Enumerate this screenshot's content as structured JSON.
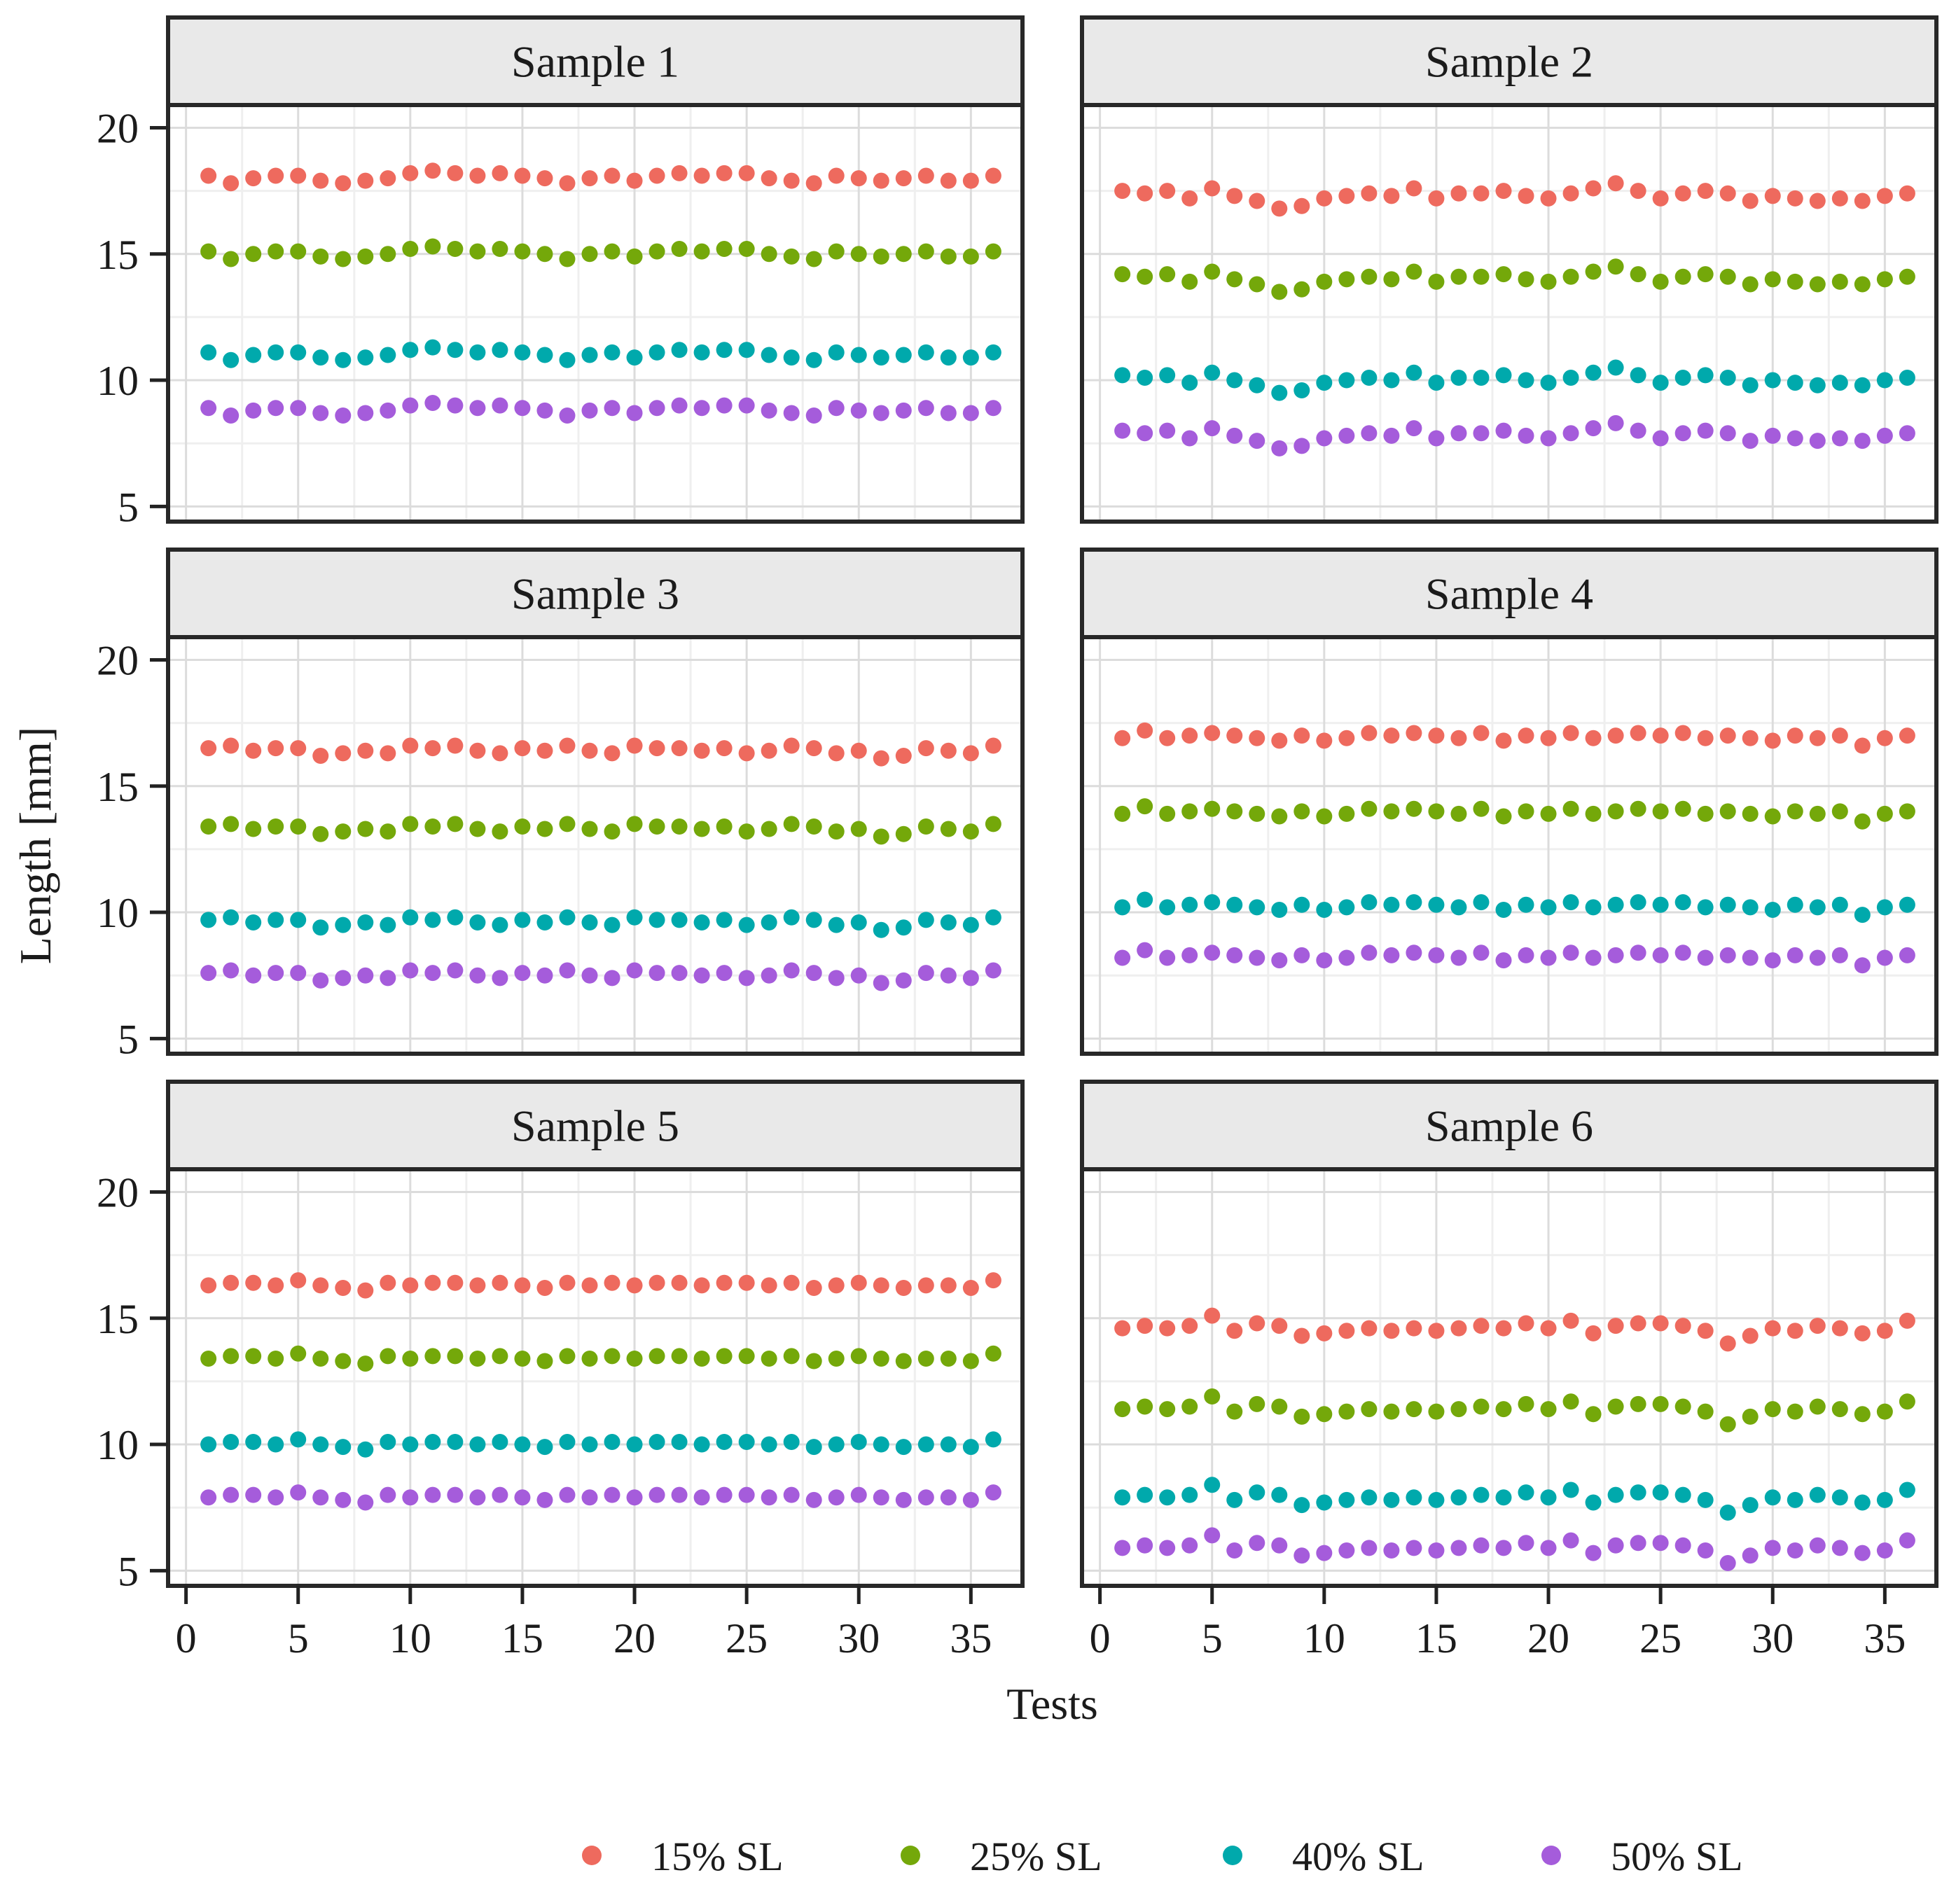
{
  "axes": {
    "x_label": "Tests",
    "y_label": "Length [mm]",
    "x_ticks": [
      0,
      5,
      10,
      15,
      20,
      25,
      30,
      35
    ],
    "y_ticks": [
      20,
      15,
      10,
      5
    ],
    "x_range": [
      -0.8,
      37.3
    ],
    "y_range": [
      4.4,
      20.9
    ]
  },
  "legend": {
    "items": [
      {
        "label": "15% SL",
        "color": "#EE6A5E",
        "marker": "dot-icon"
      },
      {
        "label": "25% SL",
        "color": "#74A80A",
        "marker": "dot-icon"
      },
      {
        "label": "40% SL",
        "color": "#00A9AC",
        "marker": "dot-icon"
      },
      {
        "label": "50% SL",
        "color": "#A55CDB",
        "marker": "dot-icon"
      }
    ]
  },
  "style": {
    "panel_header_fill": "#E9E9E9",
    "panel_border": "#282828",
    "grid_major": "#DCDCDC",
    "grid_minor": "#EFEFEF",
    "plot_background": "#FFFFFF"
  },
  "x_values": [
    1,
    2,
    3,
    4,
    5,
    6,
    7,
    8,
    9,
    10,
    11,
    12,
    13,
    14,
    15,
    16,
    17,
    18,
    19,
    20,
    21,
    22,
    23,
    24,
    25,
    26,
    27,
    28,
    29,
    30,
    31,
    32,
    33,
    34,
    35,
    36
  ],
  "chart_data": [
    {
      "type": "scatter",
      "title": "Sample 1",
      "xlabel": "Tests",
      "ylabel": "Length [mm]",
      "xlim": [
        -0.8,
        37.3
      ],
      "ylim": [
        4.4,
        20.9
      ],
      "series": [
        {
          "name": "15% SL",
          "values": [
            18.1,
            17.8,
            18.0,
            18.1,
            18.1,
            17.9,
            17.8,
            17.9,
            18.0,
            18.2,
            18.3,
            18.2,
            18.1,
            18.2,
            18.1,
            18.0,
            17.8,
            18.0,
            18.1,
            17.9,
            18.1,
            18.2,
            18.1,
            18.2,
            18.2,
            18.0,
            17.9,
            17.8,
            18.1,
            18.0,
            17.9,
            18.0,
            18.1,
            17.9,
            17.9,
            18.1
          ]
        },
        {
          "name": "25% SL",
          "values": [
            15.1,
            14.8,
            15.0,
            15.1,
            15.1,
            14.9,
            14.8,
            14.9,
            15.0,
            15.2,
            15.3,
            15.2,
            15.1,
            15.2,
            15.1,
            15.0,
            14.8,
            15.0,
            15.1,
            14.9,
            15.1,
            15.2,
            15.1,
            15.2,
            15.2,
            15.0,
            14.9,
            14.8,
            15.1,
            15.0,
            14.9,
            15.0,
            15.1,
            14.9,
            14.9,
            15.1
          ]
        },
        {
          "name": "40% SL",
          "values": [
            11.1,
            10.8,
            11.0,
            11.1,
            11.1,
            10.9,
            10.8,
            10.9,
            11.0,
            11.2,
            11.3,
            11.2,
            11.1,
            11.2,
            11.1,
            11.0,
            10.8,
            11.0,
            11.1,
            10.9,
            11.1,
            11.2,
            11.1,
            11.2,
            11.2,
            11.0,
            10.9,
            10.8,
            11.1,
            11.0,
            10.9,
            11.0,
            11.1,
            10.9,
            10.9,
            11.1
          ]
        },
        {
          "name": "50% SL",
          "values": [
            8.9,
            8.6,
            8.8,
            8.9,
            8.9,
            8.7,
            8.6,
            8.7,
            8.8,
            9.0,
            9.1,
            9.0,
            8.9,
            9.0,
            8.9,
            8.8,
            8.6,
            8.8,
            8.9,
            8.7,
            8.9,
            9.0,
            8.9,
            9.0,
            9.0,
            8.8,
            8.7,
            8.6,
            8.9,
            8.8,
            8.7,
            8.8,
            8.9,
            8.7,
            8.7,
            8.9
          ]
        }
      ]
    },
    {
      "type": "scatter",
      "title": "Sample 2",
      "xlabel": "Tests",
      "ylabel": "Length [mm]",
      "xlim": [
        -0.8,
        37.3
      ],
      "ylim": [
        4.4,
        20.9
      ],
      "series": [
        {
          "name": "15% SL",
          "values": [
            17.5,
            17.4,
            17.5,
            17.2,
            17.6,
            17.3,
            17.1,
            16.8,
            16.9,
            17.2,
            17.3,
            17.4,
            17.3,
            17.6,
            17.2,
            17.4,
            17.4,
            17.5,
            17.3,
            17.2,
            17.4,
            17.6,
            17.8,
            17.5,
            17.2,
            17.4,
            17.5,
            17.4,
            17.1,
            17.3,
            17.2,
            17.1,
            17.2,
            17.1,
            17.3,
            17.4
          ]
        },
        {
          "name": "25% SL",
          "values": [
            14.2,
            14.1,
            14.2,
            13.9,
            14.3,
            14.0,
            13.8,
            13.5,
            13.6,
            13.9,
            14.0,
            14.1,
            14.0,
            14.3,
            13.9,
            14.1,
            14.1,
            14.2,
            14.0,
            13.9,
            14.1,
            14.3,
            14.5,
            14.2,
            13.9,
            14.1,
            14.2,
            14.1,
            13.8,
            14.0,
            13.9,
            13.8,
            13.9,
            13.8,
            14.0,
            14.1
          ]
        },
        {
          "name": "40% SL",
          "values": [
            10.2,
            10.1,
            10.2,
            9.9,
            10.3,
            10.0,
            9.8,
            9.5,
            9.6,
            9.9,
            10.0,
            10.1,
            10.0,
            10.3,
            9.9,
            10.1,
            10.1,
            10.2,
            10.0,
            9.9,
            10.1,
            10.3,
            10.5,
            10.2,
            9.9,
            10.1,
            10.2,
            10.1,
            9.8,
            10.0,
            9.9,
            9.8,
            9.9,
            9.8,
            10.0,
            10.1
          ]
        },
        {
          "name": "50% SL",
          "values": [
            8.0,
            7.9,
            8.0,
            7.7,
            8.1,
            7.8,
            7.6,
            7.3,
            7.4,
            7.7,
            7.8,
            7.9,
            7.8,
            8.1,
            7.7,
            7.9,
            7.9,
            8.0,
            7.8,
            7.7,
            7.9,
            8.1,
            8.3,
            8.0,
            7.7,
            7.9,
            8.0,
            7.9,
            7.6,
            7.8,
            7.7,
            7.6,
            7.7,
            7.6,
            7.8,
            7.9
          ]
        }
      ]
    },
    {
      "type": "scatter",
      "title": "Sample 3",
      "xlabel": "Tests",
      "ylabel": "Length [mm]",
      "xlim": [
        -0.8,
        37.3
      ],
      "ylim": [
        4.4,
        20.9
      ],
      "series": [
        {
          "name": "15% SL",
          "values": [
            16.5,
            16.6,
            16.4,
            16.5,
            16.5,
            16.2,
            16.3,
            16.4,
            16.3,
            16.6,
            16.5,
            16.6,
            16.4,
            16.3,
            16.5,
            16.4,
            16.6,
            16.4,
            16.3,
            16.6,
            16.5,
            16.5,
            16.4,
            16.5,
            16.3,
            16.4,
            16.6,
            16.5,
            16.3,
            16.4,
            16.1,
            16.2,
            16.5,
            16.4,
            16.3,
            16.6
          ]
        },
        {
          "name": "25% SL",
          "values": [
            13.4,
            13.5,
            13.3,
            13.4,
            13.4,
            13.1,
            13.2,
            13.3,
            13.2,
            13.5,
            13.4,
            13.5,
            13.3,
            13.2,
            13.4,
            13.3,
            13.5,
            13.3,
            13.2,
            13.5,
            13.4,
            13.4,
            13.3,
            13.4,
            13.2,
            13.3,
            13.5,
            13.4,
            13.2,
            13.3,
            13.0,
            13.1,
            13.4,
            13.3,
            13.2,
            13.5
          ]
        },
        {
          "name": "40% SL",
          "values": [
            9.7,
            9.8,
            9.6,
            9.7,
            9.7,
            9.4,
            9.5,
            9.6,
            9.5,
            9.8,
            9.7,
            9.8,
            9.6,
            9.5,
            9.7,
            9.6,
            9.8,
            9.6,
            9.5,
            9.8,
            9.7,
            9.7,
            9.6,
            9.7,
            9.5,
            9.6,
            9.8,
            9.7,
            9.5,
            9.6,
            9.3,
            9.4,
            9.7,
            9.6,
            9.5,
            9.8
          ]
        },
        {
          "name": "50% SL",
          "values": [
            7.6,
            7.7,
            7.5,
            7.6,
            7.6,
            7.3,
            7.4,
            7.5,
            7.4,
            7.7,
            7.6,
            7.7,
            7.5,
            7.4,
            7.6,
            7.5,
            7.7,
            7.5,
            7.4,
            7.7,
            7.6,
            7.6,
            7.5,
            7.6,
            7.4,
            7.5,
            7.7,
            7.6,
            7.4,
            7.5,
            7.2,
            7.3,
            7.6,
            7.5,
            7.4,
            7.7
          ]
        }
      ]
    },
    {
      "type": "scatter",
      "title": "Sample 4",
      "xlabel": "Tests",
      "ylabel": "Length [mm]",
      "xlim": [
        -0.8,
        37.3
      ],
      "ylim": [
        4.4,
        20.9
      ],
      "series": [
        {
          "name": "15% SL",
          "values": [
            16.9,
            17.2,
            16.9,
            17.0,
            17.1,
            17.0,
            16.9,
            16.8,
            17.0,
            16.8,
            16.9,
            17.1,
            17.0,
            17.1,
            17.0,
            16.9,
            17.1,
            16.8,
            17.0,
            16.9,
            17.1,
            16.9,
            17.0,
            17.1,
            17.0,
            17.1,
            16.9,
            17.0,
            16.9,
            16.8,
            17.0,
            16.9,
            17.0,
            16.6,
            16.9,
            17.0
          ]
        },
        {
          "name": "25% SL",
          "values": [
            13.9,
            14.2,
            13.9,
            14.0,
            14.1,
            14.0,
            13.9,
            13.8,
            14.0,
            13.8,
            13.9,
            14.1,
            14.0,
            14.1,
            14.0,
            13.9,
            14.1,
            13.8,
            14.0,
            13.9,
            14.1,
            13.9,
            14.0,
            14.1,
            14.0,
            14.1,
            13.9,
            14.0,
            13.9,
            13.8,
            14.0,
            13.9,
            14.0,
            13.6,
            13.9,
            14.0
          ]
        },
        {
          "name": "40% SL",
          "values": [
            10.2,
            10.5,
            10.2,
            10.3,
            10.4,
            10.3,
            10.2,
            10.1,
            10.3,
            10.1,
            10.2,
            10.4,
            10.3,
            10.4,
            10.3,
            10.2,
            10.4,
            10.1,
            10.3,
            10.2,
            10.4,
            10.2,
            10.3,
            10.4,
            10.3,
            10.4,
            10.2,
            10.3,
            10.2,
            10.1,
            10.3,
            10.2,
            10.3,
            9.9,
            10.2,
            10.3
          ]
        },
        {
          "name": "50% SL",
          "values": [
            8.2,
            8.5,
            8.2,
            8.3,
            8.4,
            8.3,
            8.2,
            8.1,
            8.3,
            8.1,
            8.2,
            8.4,
            8.3,
            8.4,
            8.3,
            8.2,
            8.4,
            8.1,
            8.3,
            8.2,
            8.4,
            8.2,
            8.3,
            8.4,
            8.3,
            8.4,
            8.2,
            8.3,
            8.2,
            8.1,
            8.3,
            8.2,
            8.3,
            7.9,
            8.2,
            8.3
          ]
        }
      ]
    },
    {
      "type": "scatter",
      "title": "Sample 5",
      "xlabel": "Tests",
      "ylabel": "Length [mm]",
      "xlim": [
        -0.8,
        37.3
      ],
      "ylim": [
        4.4,
        20.9
      ],
      "series": [
        {
          "name": "15% SL",
          "values": [
            16.3,
            16.4,
            16.4,
            16.3,
            16.5,
            16.3,
            16.2,
            16.1,
            16.4,
            16.3,
            16.4,
            16.4,
            16.3,
            16.4,
            16.3,
            16.2,
            16.4,
            16.3,
            16.4,
            16.3,
            16.4,
            16.4,
            16.3,
            16.4,
            16.4,
            16.3,
            16.4,
            16.2,
            16.3,
            16.4,
            16.3,
            16.2,
            16.3,
            16.3,
            16.2,
            16.5
          ]
        },
        {
          "name": "25% SL",
          "values": [
            13.4,
            13.5,
            13.5,
            13.4,
            13.6,
            13.4,
            13.3,
            13.2,
            13.5,
            13.4,
            13.5,
            13.5,
            13.4,
            13.5,
            13.4,
            13.3,
            13.5,
            13.4,
            13.5,
            13.4,
            13.5,
            13.5,
            13.4,
            13.5,
            13.5,
            13.4,
            13.5,
            13.3,
            13.4,
            13.5,
            13.4,
            13.3,
            13.4,
            13.4,
            13.3,
            13.6
          ]
        },
        {
          "name": "40% SL",
          "values": [
            10.0,
            10.1,
            10.1,
            10.0,
            10.2,
            10.0,
            9.9,
            9.8,
            10.1,
            10.0,
            10.1,
            10.1,
            10.0,
            10.1,
            10.0,
            9.9,
            10.1,
            10.0,
            10.1,
            10.0,
            10.1,
            10.1,
            10.0,
            10.1,
            10.1,
            10.0,
            10.1,
            9.9,
            10.0,
            10.1,
            10.0,
            9.9,
            10.0,
            10.0,
            9.9,
            10.2
          ]
        },
        {
          "name": "50% SL",
          "values": [
            7.9,
            8.0,
            8.0,
            7.9,
            8.1,
            7.9,
            7.8,
            7.7,
            8.0,
            7.9,
            8.0,
            8.0,
            7.9,
            8.0,
            7.9,
            7.8,
            8.0,
            7.9,
            8.0,
            7.9,
            8.0,
            8.0,
            7.9,
            8.0,
            8.0,
            7.9,
            8.0,
            7.8,
            7.9,
            8.0,
            7.9,
            7.8,
            7.9,
            7.9,
            7.8,
            8.1
          ]
        }
      ]
    },
    {
      "type": "scatter",
      "title": "Sample 6",
      "xlabel": "Tests",
      "ylabel": "Length [mm]",
      "xlim": [
        -0.8,
        37.3
      ],
      "ylim": [
        4.4,
        20.9
      ],
      "series": [
        {
          "name": "15% SL",
          "values": [
            14.6,
            14.7,
            14.6,
            14.7,
            15.1,
            14.5,
            14.8,
            14.7,
            14.3,
            14.4,
            14.5,
            14.6,
            14.5,
            14.6,
            14.5,
            14.6,
            14.7,
            14.6,
            14.8,
            14.6,
            14.9,
            14.4,
            14.7,
            14.8,
            14.8,
            14.7,
            14.5,
            14.0,
            14.3,
            14.6,
            14.5,
            14.7,
            14.6,
            14.4,
            14.5,
            14.9
          ]
        },
        {
          "name": "25% SL",
          "values": [
            11.4,
            11.5,
            11.4,
            11.5,
            11.9,
            11.3,
            11.6,
            11.5,
            11.1,
            11.2,
            11.3,
            11.4,
            11.3,
            11.4,
            11.3,
            11.4,
            11.5,
            11.4,
            11.6,
            11.4,
            11.7,
            11.2,
            11.5,
            11.6,
            11.6,
            11.5,
            11.3,
            10.8,
            11.1,
            11.4,
            11.3,
            11.5,
            11.4,
            11.2,
            11.3,
            11.7
          ]
        },
        {
          "name": "40% SL",
          "values": [
            7.9,
            8.0,
            7.9,
            8.0,
            8.4,
            7.8,
            8.1,
            8.0,
            7.6,
            7.7,
            7.8,
            7.9,
            7.8,
            7.9,
            7.8,
            7.9,
            8.0,
            7.9,
            8.1,
            7.9,
            8.2,
            7.7,
            8.0,
            8.1,
            8.1,
            8.0,
            7.8,
            7.3,
            7.6,
            7.9,
            7.8,
            8.0,
            7.9,
            7.7,
            7.8,
            8.2
          ]
        },
        {
          "name": "50% SL",
          "values": [
            5.9,
            6.0,
            5.9,
            6.0,
            6.4,
            5.8,
            6.1,
            6.0,
            5.6,
            5.7,
            5.8,
            5.9,
            5.8,
            5.9,
            5.8,
            5.9,
            6.0,
            5.9,
            6.1,
            5.9,
            6.2,
            5.7,
            6.0,
            6.1,
            6.1,
            6.0,
            5.8,
            5.3,
            5.6,
            5.9,
            5.8,
            6.0,
            5.9,
            5.7,
            5.8,
            6.2
          ]
        }
      ]
    }
  ]
}
